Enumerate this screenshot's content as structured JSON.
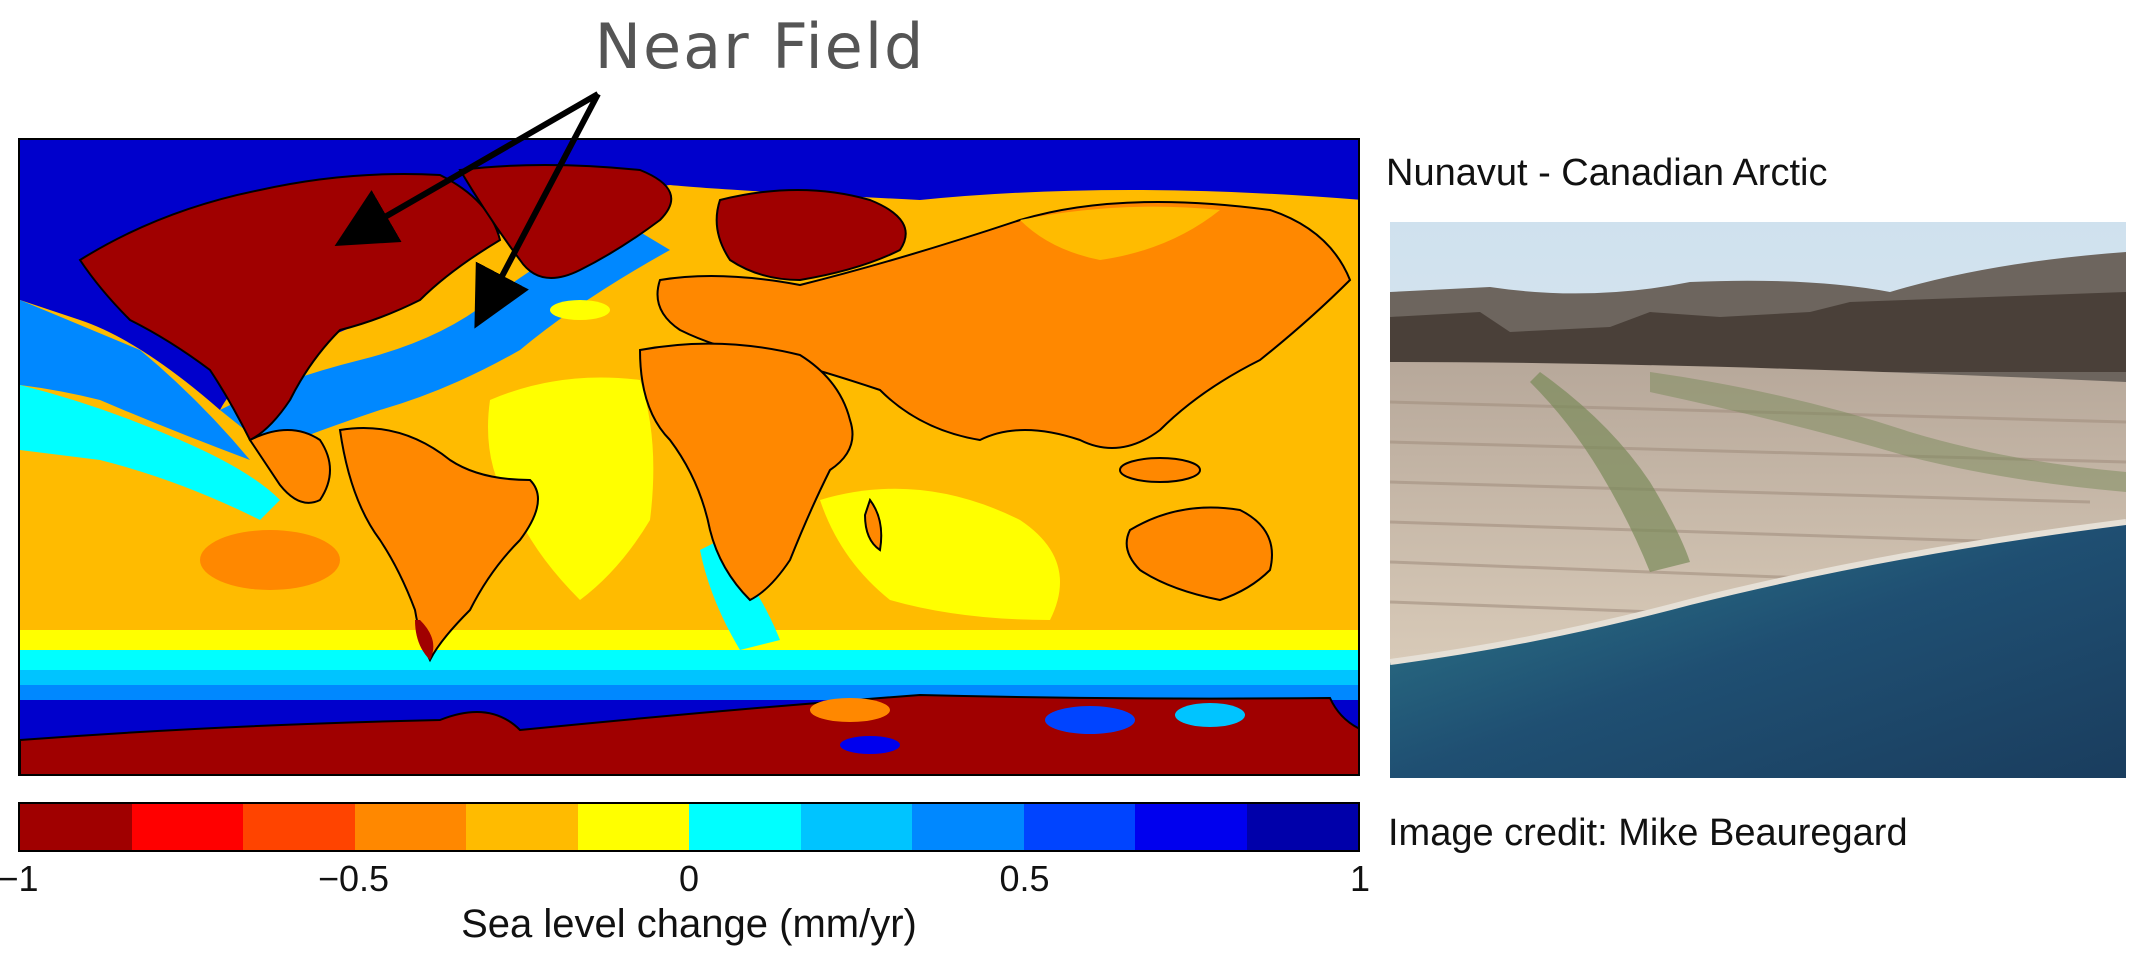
{
  "annotation": {
    "near_field_label": "Near Field"
  },
  "map": {
    "colorbar": {
      "colors": [
        "#a00000",
        "#ff0000",
        "#ff4400",
        "#ff8800",
        "#ffbb00",
        "#ffff00",
        "#00ffff",
        "#00c4ff",
        "#0088ff",
        "#0044ff",
        "#0000ee",
        "#0000aa"
      ],
      "min": -1,
      "max": 1,
      "ticks": [
        "−1",
        "−0.5",
        "0",
        "0.5",
        "1"
      ],
      "tick_values": [
        -1,
        -0.5,
        0,
        0.5,
        1
      ],
      "label": "Sea level change (mm/yr)"
    },
    "ocean_background": "#ffbb00"
  },
  "photo": {
    "caption": "Nunavut - Canadian Arctic",
    "credit": "Image credit: Mike Beauregard"
  }
}
